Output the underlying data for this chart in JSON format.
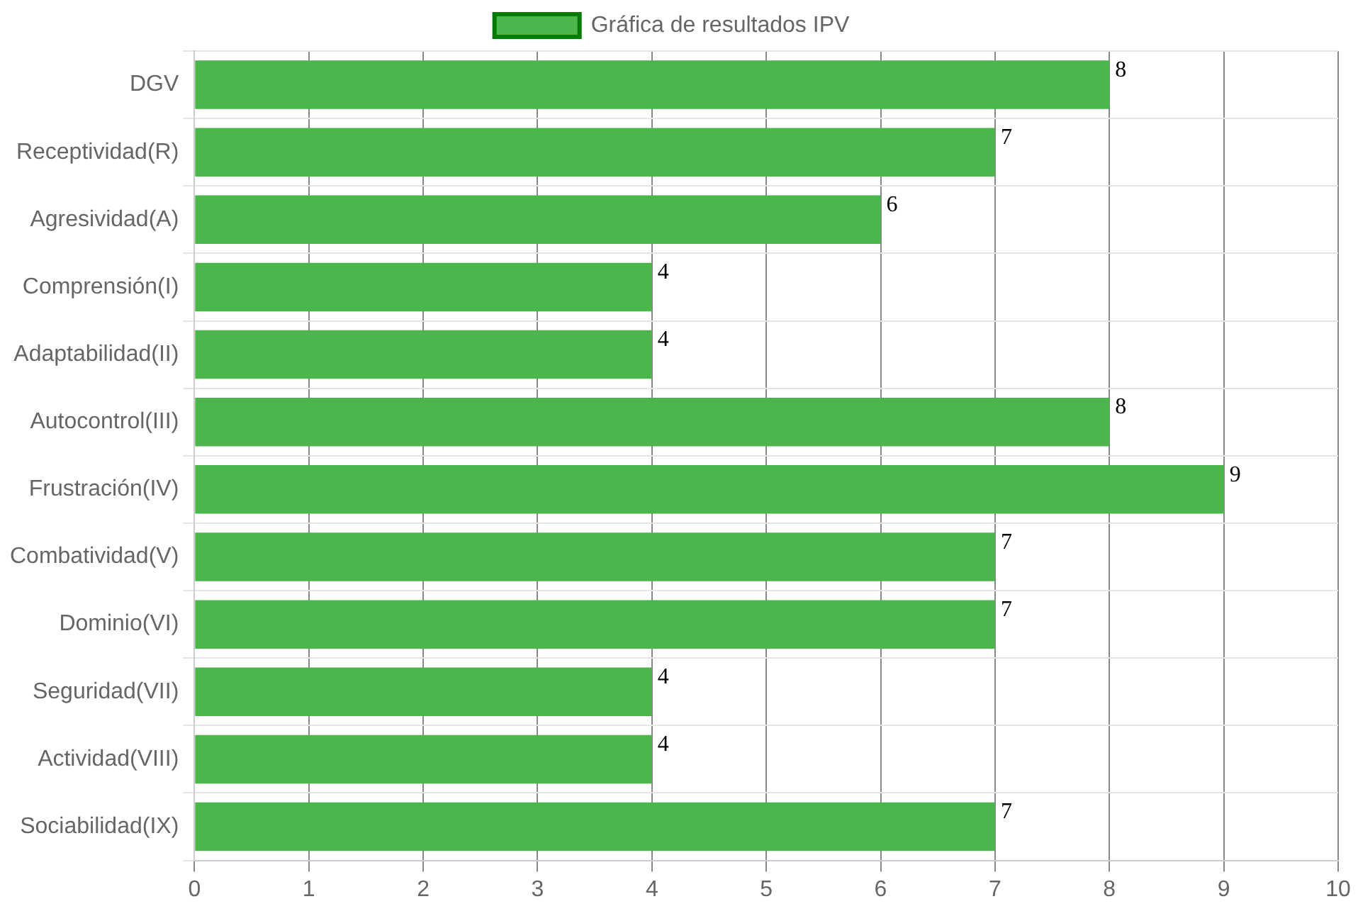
{
  "chart_data": {
    "type": "bar",
    "orientation": "horizontal",
    "categories": [
      "DGV",
      "Receptividad(R)",
      "Agresividad(A)",
      "Comprensión(I)",
      "Adaptabilidad(II)",
      "Autocontrol(III)",
      "Frustración(IV)",
      "Combatividad(V)",
      "Dominio(VI)",
      "Seguridad(VII)",
      "Actividad(VIII)",
      "Sociabilidad(IX)"
    ],
    "series": [
      {
        "name": "Gráfica de resultados IPV",
        "color": "#4cb54c",
        "values": [
          8,
          7,
          6,
          4,
          4,
          8,
          9,
          7,
          7,
          4,
          4,
          7
        ]
      }
    ],
    "xlim": [
      0,
      10
    ],
    "xticks": [
      0,
      1,
      2,
      3,
      4,
      5,
      6,
      7,
      8,
      9,
      10
    ],
    "grid": true,
    "legend": "top",
    "data_labels": true
  }
}
